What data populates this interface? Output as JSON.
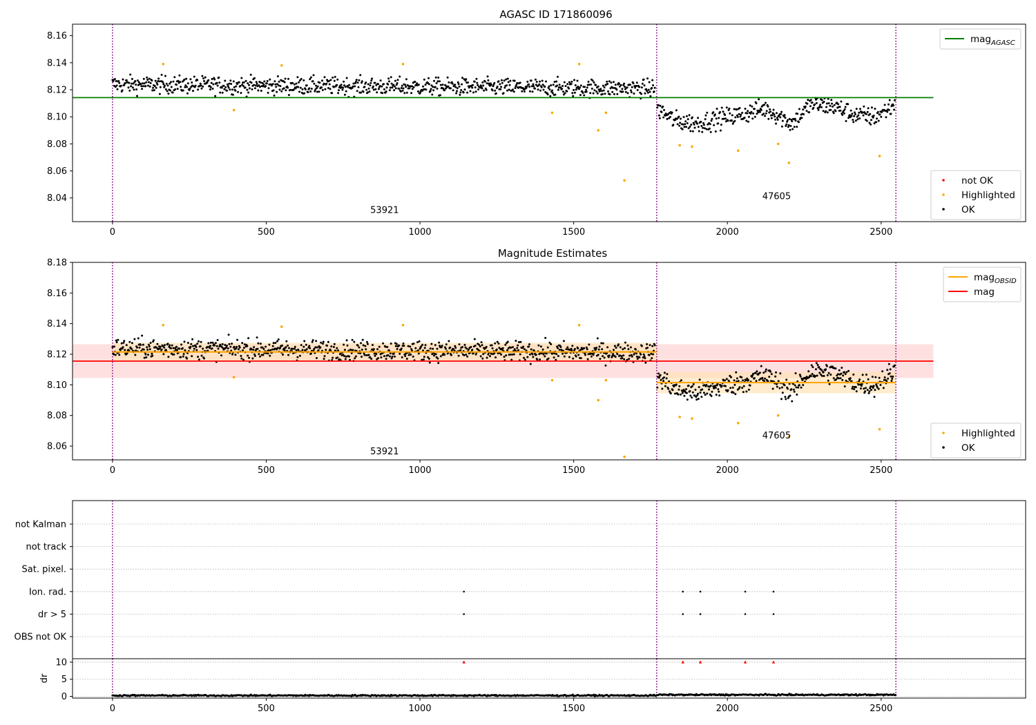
{
  "colors": {
    "ok": "#000000",
    "highlighted": "#ffa500",
    "not_ok": "#ff0000",
    "mag_agasc": "#008000",
    "mag": "#ff0000",
    "mag_obsid": "#ffa500",
    "band_mag": "#ffcccc",
    "band_obsid": "#ffe2b3",
    "divider": "#800080",
    "grid": "#b0b0b0"
  },
  "chart_data": [
    {
      "type": "scatter",
      "title": "AGASC ID 171860096",
      "xlabel": "",
      "ylabel": "",
      "xlim": [
        -130,
        2970
      ],
      "ylim": [
        8.0225,
        8.1685
      ],
      "xticks": [
        0,
        500,
        1000,
        1500,
        2000,
        2500
      ],
      "yticks": [
        8.04,
        8.06,
        8.08,
        8.1,
        8.12,
        8.14,
        8.16
      ],
      "grid": false,
      "dividers": [
        0,
        1770,
        2548
      ],
      "obsid_labels": [
        {
          "text": "53921",
          "x": 885,
          "y": 8.029
        },
        {
          "text": "47605",
          "x": 2160,
          "y": 8.039
        }
      ],
      "reference_lines": [
        {
          "name": "mag",
          "subscript": "AGASC",
          "y": 8.1142,
          "x_range": [
            -130,
            2670
          ],
          "color": "#008000"
        }
      ],
      "legends": [
        {
          "placement": "top-right",
          "entries": [
            {
              "kind": "line",
              "color": "#008000",
              "label": "mag",
              "subscript": "AGASC"
            }
          ]
        },
        {
          "placement": "lower-right",
          "entries": [
            {
              "kind": "point",
              "color": "#ff0000",
              "label": "not OK"
            },
            {
              "kind": "point",
              "color": "#ffa500",
              "label": "Highlighted"
            },
            {
              "kind": "point",
              "color": "#000000",
              "label": "OK"
            }
          ]
        }
      ],
      "series": [
        {
          "name": "OK",
          "segments": [
            {
              "x_start": 0,
              "x_end": 1765,
              "baseline": [
                [
                  0,
                  8.124
                ],
                [
                  1765,
                  8.121
                ]
              ],
              "scatter": 0.0058,
              "step": 2
            },
            {
              "x_start": 1772,
              "x_end": 2545,
              "baseline": [
                [
                  1772,
                  8.106
                ],
                [
                  1830,
                  8.097
                ],
                [
                  1900,
                  8.095
                ],
                [
                  1980,
                  8.099
                ],
                [
                  2050,
                  8.102
                ],
                [
                  2120,
                  8.106
                ],
                [
                  2160,
                  8.102
                ],
                [
                  2210,
                  8.095
                ],
                [
                  2270,
                  8.109
                ],
                [
                  2340,
                  8.108
                ],
                [
                  2420,
                  8.101
                ],
                [
                  2480,
                  8.1
                ],
                [
                  2545,
                  8.109
                ]
              ],
              "scatter": 0.0065,
              "step": 2
            }
          ]
        },
        {
          "name": "Highlighted",
          "points": [
            [
              165,
              8.139
            ],
            [
              395,
              8.105
            ],
            [
              550,
              8.138
            ],
            [
              945,
              8.139
            ],
            [
              1430,
              8.103
            ],
            [
              1518,
              8.139
            ],
            [
              1580,
              8.09
            ],
            [
              1605,
              8.103
            ],
            [
              1665,
              8.053
            ],
            [
              1845,
              8.079
            ],
            [
              1885,
              8.078
            ],
            [
              2035,
              8.075
            ],
            [
              2165,
              8.08
            ],
            [
              2200,
              8.066
            ],
            [
              2495,
              8.071
            ]
          ]
        }
      ]
    },
    {
      "type": "scatter",
      "title": "Magnitude Estimates",
      "xlabel": "",
      "ylabel": "",
      "xlim": [
        -130,
        2970
      ],
      "ylim": [
        8.051,
        8.18
      ],
      "xticks": [
        0,
        500,
        1000,
        1500,
        2000,
        2500
      ],
      "yticks": [
        8.06,
        8.08,
        8.1,
        8.12,
        8.14,
        8.16,
        8.18
      ],
      "grid": false,
      "dividers": [
        0,
        1770,
        2548
      ],
      "obsid_labels": [
        {
          "text": "53921",
          "x": 885,
          "y": 8.0545
        },
        {
          "text": "47605",
          "x": 2160,
          "y": 8.065
        }
      ],
      "reference_lines": [
        {
          "name": "mag",
          "y": 8.1155,
          "band": [
            8.1045,
            8.1265
          ],
          "x_range": [
            -130,
            2670
          ],
          "color": "#ff0000"
        },
        {
          "name": "mag",
          "subscript": "OBSID",
          "segments": [
            {
              "x_range": [
                0,
                1770
              ],
              "y": 8.1215,
              "band": [
                8.1155,
                8.1275
              ]
            },
            {
              "x_range": [
                1770,
                2548
              ],
              "y": 8.1015,
              "band": [
                8.0945,
                8.1085
              ]
            }
          ],
          "color": "#ffa500"
        }
      ],
      "legends": [
        {
          "placement": "top-right",
          "entries": [
            {
              "kind": "line",
              "color": "#ffa500",
              "label": "mag",
              "subscript": "OBSID"
            },
            {
              "kind": "line",
              "color": "#ff0000",
              "label": "mag"
            }
          ]
        },
        {
          "placement": "lower-right",
          "entries": [
            {
              "kind": "point",
              "color": "#ffa500",
              "label": "Highlighted"
            },
            {
              "kind": "point",
              "color": "#000000",
              "label": "OK"
            }
          ]
        }
      ],
      "series": [
        {
          "name": "OK",
          "segments": [
            {
              "x_start": 0,
              "x_end": 1765,
              "baseline": [
                [
                  0,
                  8.124
                ],
                [
                  1765,
                  8.121
                ]
              ],
              "scatter": 0.0058,
              "step": 2
            },
            {
              "x_start": 1772,
              "x_end": 2545,
              "baseline": [
                [
                  1772,
                  8.106
                ],
                [
                  1830,
                  8.097
                ],
                [
                  1900,
                  8.095
                ],
                [
                  1980,
                  8.099
                ],
                [
                  2050,
                  8.102
                ],
                [
                  2120,
                  8.106
                ],
                [
                  2160,
                  8.102
                ],
                [
                  2210,
                  8.095
                ],
                [
                  2270,
                  8.109
                ],
                [
                  2340,
                  8.108
                ],
                [
                  2420,
                  8.101
                ],
                [
                  2480,
                  8.1
                ],
                [
                  2545,
                  8.109
                ]
              ],
              "scatter": 0.0065,
              "step": 2
            }
          ]
        },
        {
          "name": "Highlighted",
          "points": [
            [
              165,
              8.139
            ],
            [
              395,
              8.105
            ],
            [
              550,
              8.138
            ],
            [
              945,
              8.139
            ],
            [
              1430,
              8.103
            ],
            [
              1518,
              8.139
            ],
            [
              1580,
              8.09
            ],
            [
              1605,
              8.103
            ],
            [
              1665,
              8.053
            ],
            [
              1845,
              8.079
            ],
            [
              1885,
              8.078
            ],
            [
              2035,
              8.075
            ],
            [
              2165,
              8.08
            ],
            [
              2200,
              8.066
            ],
            [
              2495,
              8.071
            ]
          ]
        }
      ]
    },
    {
      "type": "scatter",
      "title": "",
      "xlabel": "",
      "ylabel": "",
      "xlim": [
        -130,
        2970
      ],
      "grid": true,
      "dividers": [
        0,
        1770,
        2548
      ],
      "categories": [
        "not Kalman",
        "not track",
        "Sat. pixel.",
        "Ion. rad.",
        "dr > 5",
        "OBS not OK"
      ],
      "series": [
        {
          "flag": "Ion. rad.",
          "x": [
            1143,
            1855,
            1912,
            2058,
            2150
          ]
        },
        {
          "flag": "dr > 5",
          "x": [
            1143,
            1855,
            1912,
            2058,
            2150
          ]
        }
      ]
    },
    {
      "type": "scatter",
      "title": "",
      "xlabel": "",
      "ylabel": "dr",
      "xlim": [
        -130,
        2970
      ],
      "ylim": [
        -0.5,
        11
      ],
      "yticks": [
        0,
        5,
        10
      ],
      "xticks": [
        0,
        500,
        1000,
        1500,
        2000,
        2500
      ],
      "grid": true,
      "dividers": [
        0,
        1770,
        2548
      ],
      "series": [
        {
          "name": "dr",
          "color": "#000000",
          "x_range": [
            0,
            2548
          ],
          "mean": 0.25
        },
        {
          "name": "dr clipped",
          "color": "#ff0000",
          "marker": "triangle",
          "points": [
            [
              1143,
              10
            ],
            [
              1855,
              10
            ],
            [
              1912,
              10
            ],
            [
              2058,
              10
            ],
            [
              2150,
              10
            ]
          ]
        }
      ]
    }
  ]
}
